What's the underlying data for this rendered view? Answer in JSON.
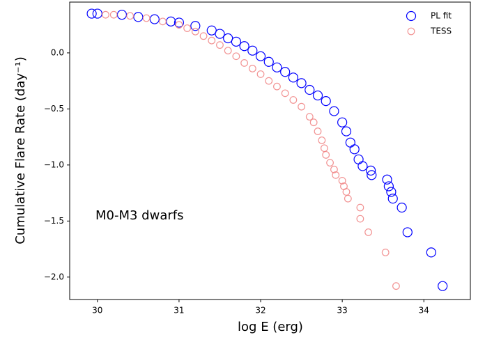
{
  "chart_data": {
    "type": "scatter",
    "xlabel": "log E (erg)",
    "ylabel": "Cumulative Flare Rate (day⁻¹)",
    "annotation": "M0-M3 dwarfs",
    "xlim": [
      29.66,
      34.57
    ],
    "xticks": [
      30,
      31,
      32,
      33,
      34
    ],
    "ylim": [
      -2.2,
      0.453
    ],
    "yticks": [
      {
        "value": -2,
        "label": "−2.0"
      },
      {
        "value": -1.5,
        "label": "−1.5"
      },
      {
        "value": -1,
        "label": "−1.0"
      },
      {
        "value": -0.5,
        "label": "−0.5"
      },
      {
        "value": 0,
        "label": "0.0"
      }
    ],
    "legend": "upper right",
    "series": [
      {
        "name": "PL fit",
        "color": "#0000ff",
        "x": [
          29.93,
          30.0,
          30.3,
          30.5,
          30.7,
          30.9,
          31.0,
          31.2,
          31.4,
          31.5,
          31.6,
          31.7,
          31.8,
          31.9,
          32.0,
          32.1,
          32.2,
          32.3,
          32.4,
          32.5,
          32.6,
          32.7,
          32.8,
          32.9,
          33.0,
          33.05,
          33.1,
          33.15,
          33.2,
          33.25,
          33.35,
          33.36,
          33.55,
          33.57,
          33.6,
          33.62,
          33.73,
          33.8,
          34.09,
          34.23
        ],
        "values": [
          0.35,
          0.35,
          0.34,
          0.32,
          0.3,
          0.28,
          0.27,
          0.24,
          0.2,
          0.17,
          0.13,
          0.1,
          0.06,
          0.02,
          -0.03,
          -0.08,
          -0.13,
          -0.17,
          -0.22,
          -0.27,
          -0.33,
          -0.38,
          -0.43,
          -0.52,
          -0.62,
          -0.7,
          -0.8,
          -0.86,
          -0.95,
          -1.01,
          -1.05,
          -1.09,
          -1.13,
          -1.19,
          -1.24,
          -1.3,
          -1.38,
          -1.6,
          -1.78,
          -2.08
        ]
      },
      {
        "name": "TESS",
        "color": "#f08080",
        "x": [
          30.1,
          30.2,
          30.4,
          30.6,
          30.8,
          31.0,
          31.1,
          31.2,
          31.3,
          31.4,
          31.5,
          31.6,
          31.7,
          31.8,
          31.9,
          32.0,
          32.1,
          32.2,
          32.3,
          32.4,
          32.5,
          32.6,
          32.65,
          32.7,
          32.75,
          32.78,
          32.8,
          32.85,
          32.9,
          32.92,
          33.0,
          33.02,
          33.05,
          33.07,
          33.22,
          33.22,
          33.32,
          33.53,
          33.66
        ],
        "values": [
          0.34,
          0.34,
          0.33,
          0.31,
          0.28,
          0.25,
          0.22,
          0.19,
          0.15,
          0.11,
          0.07,
          0.02,
          -0.03,
          -0.09,
          -0.14,
          -0.19,
          -0.25,
          -0.3,
          -0.36,
          -0.42,
          -0.48,
          -0.57,
          -0.62,
          -0.7,
          -0.78,
          -0.85,
          -0.91,
          -0.98,
          -1.04,
          -1.09,
          -1.14,
          -1.19,
          -1.24,
          -1.3,
          -1.38,
          -1.48,
          -1.6,
          -1.78,
          -2.08
        ]
      }
    ]
  }
}
